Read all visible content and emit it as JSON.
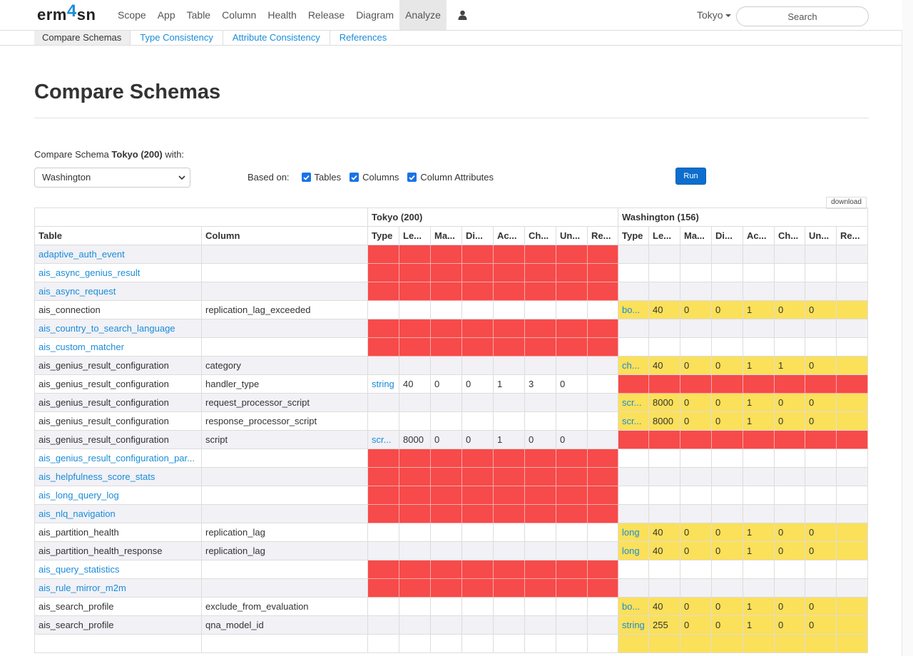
{
  "nav": {
    "logo_prefix": "erm",
    "logo_digit": "4",
    "logo_suffix": "sn",
    "items": [
      "Scope",
      "App",
      "Table",
      "Column",
      "Health",
      "Release",
      "Diagram",
      "Analyze"
    ],
    "active": "Analyze",
    "schema": "Tokyo",
    "search_placeholder": "Search"
  },
  "subnav": {
    "items": [
      "Compare Schemas",
      "Type Consistency",
      "Attribute Consistency",
      "References"
    ],
    "active": "Compare Schemas"
  },
  "page": {
    "title": "Compare Schemas",
    "compare_prefix": "Compare Schema",
    "compare_schema": "Tokyo (200)",
    "compare_suffix": "with:",
    "selected_schema": "Washington",
    "based_on_label": "Based on:",
    "options": [
      {
        "label": "Tables",
        "checked": true
      },
      {
        "label": "Columns",
        "checked": true
      },
      {
        "label": "Column Attributes",
        "checked": true
      }
    ],
    "run_label": "Run",
    "download_label": "download"
  },
  "table": {
    "groups": [
      "Tokyo (200)",
      "Washington (156)"
    ],
    "headers": [
      "Table",
      "Column",
      "Type",
      "Le...",
      "Ma...",
      "Di...",
      "Ac...",
      "Ch...",
      "Un...",
      "Re...",
      "Type",
      "Le...",
      "Ma...",
      "Di...",
      "Ac...",
      "Ch...",
      "Un...",
      "Re..."
    ],
    "rows": [
      {
        "table": "adaptive_auth_event",
        "column": "",
        "left": "missing",
        "right": null
      },
      {
        "table": "ais_async_genius_result",
        "column": "",
        "left": "missing",
        "right": null
      },
      {
        "table": "ais_async_request",
        "column": "",
        "left": "missing",
        "right": null
      },
      {
        "table": "ais_connection",
        "column": "replication_lag_exceeded",
        "left": null,
        "right": [
          "bo...",
          "40",
          "0",
          "0",
          "1",
          "0",
          "0",
          ""
        ]
      },
      {
        "table": "ais_country_to_search_language",
        "column": "",
        "left": "missing",
        "right": null
      },
      {
        "table": "ais_custom_matcher",
        "column": "",
        "left": "missing",
        "right": null
      },
      {
        "table": "ais_genius_result_configuration",
        "column": "category",
        "left": null,
        "right": [
          "ch...",
          "40",
          "0",
          "0",
          "1",
          "1",
          "0",
          ""
        ]
      },
      {
        "table": "ais_genius_result_configuration",
        "column": "handler_type",
        "left": [
          "string",
          "40",
          "0",
          "0",
          "1",
          "3",
          "0",
          ""
        ],
        "right": "missing"
      },
      {
        "table": "ais_genius_result_configuration",
        "column": "request_processor_script",
        "left": null,
        "right": [
          "scr...",
          "8000",
          "0",
          "0",
          "1",
          "0",
          "0",
          ""
        ]
      },
      {
        "table": "ais_genius_result_configuration",
        "column": "response_processor_script",
        "left": null,
        "right": [
          "scr...",
          "8000",
          "0",
          "0",
          "1",
          "0",
          "0",
          ""
        ]
      },
      {
        "table": "ais_genius_result_configuration",
        "column": "script",
        "left": [
          "scr...",
          "8000",
          "0",
          "0",
          "1",
          "0",
          "0",
          ""
        ],
        "right": "missing"
      },
      {
        "table": "ais_genius_result_configuration_par...",
        "column": "",
        "left": "missing",
        "right": null
      },
      {
        "table": "ais_helpfulness_score_stats",
        "column": "",
        "left": "missing",
        "right": null
      },
      {
        "table": "ais_long_query_log",
        "column": "",
        "left": "missing",
        "right": null
      },
      {
        "table": "ais_nlq_navigation",
        "column": "",
        "left": "missing",
        "right": null
      },
      {
        "table": "ais_partition_health",
        "column": "replication_lag",
        "left": null,
        "right": [
          "long",
          "40",
          "0",
          "0",
          "1",
          "0",
          "0",
          ""
        ]
      },
      {
        "table": "ais_partition_health_response",
        "column": "replication_lag",
        "left": null,
        "right": [
          "long",
          "40",
          "0",
          "0",
          "1",
          "0",
          "0",
          ""
        ]
      },
      {
        "table": "ais_query_statistics",
        "column": "",
        "left": "missing",
        "right": null
      },
      {
        "table": "ais_rule_mirror_m2m",
        "column": "",
        "left": "missing",
        "right": null
      },
      {
        "table": "ais_search_profile",
        "column": "exclude_from_evaluation",
        "left": null,
        "right": [
          "bo...",
          "40",
          "0",
          "0",
          "1",
          "0",
          "0",
          ""
        ]
      },
      {
        "table": "ais_search_profile",
        "column": "qna_model_id",
        "left": null,
        "right": [
          "string",
          "255",
          "0",
          "0",
          "1",
          "0",
          "0",
          ""
        ]
      },
      {
        "table": "",
        "column": "",
        "left": null,
        "right": [
          "",
          "",
          "",
          "",
          "",
          "",
          "",
          ""
        ]
      }
    ]
  },
  "colors": {
    "link": "#1a8cd8",
    "missing": "#f74a4a",
    "different": "#fbe05a",
    "run_button": "#0d6ecd"
  }
}
